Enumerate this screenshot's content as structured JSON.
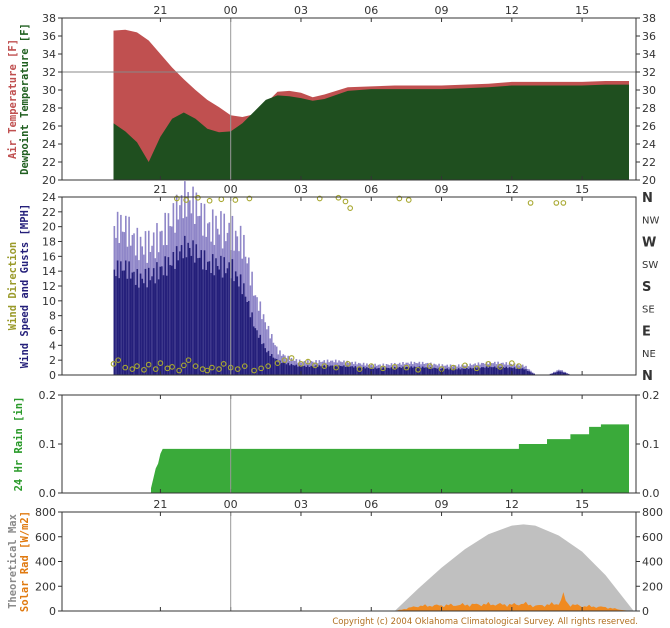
{
  "x_ticks": [
    "21",
    "00",
    "03",
    "06",
    "09",
    "12",
    "15"
  ],
  "copyright": "Copyright (c) 2004 Oklahoma Climatological Survey. All rights reserved.",
  "colors": {
    "air_temp": "#c05050",
    "dewpoint": "#1f4f1f",
    "gust": "#8f86c8",
    "wind_speed": "#241f7a",
    "wind_dir": "#a8a830",
    "rain": "#3aaa3a",
    "theoretical_max": "#c0c0c0",
    "solar": "#f08a20"
  },
  "chart_data": [
    {
      "type": "area",
      "ylabel_lines": [
        {
          "text": "Air Temperature [F]",
          "color": "#c05050"
        },
        {
          "text": "Dewpoint Temperature [F]",
          "color": "#1f5f1f"
        }
      ],
      "ylim": [
        20,
        38
      ],
      "yticks": [
        20,
        22,
        24,
        26,
        28,
        30,
        32,
        34,
        36,
        38
      ],
      "highlight_line": 32,
      "x_hours": [
        -5,
        -4.5,
        -4,
        -3.5,
        -3,
        -2.5,
        -2,
        -1.5,
        -1,
        -0.5,
        0,
        0.5,
        1,
        1.5,
        2,
        2.5,
        3,
        3.5,
        4,
        5,
        6,
        7,
        8,
        9,
        10,
        11,
        12,
        13,
        14,
        15,
        16,
        17
      ],
      "series": [
        {
          "name": "Air Temperature [F]",
          "values": [
            36.6,
            36.7,
            36.4,
            35.5,
            34.0,
            32.5,
            31.2,
            30.0,
            28.9,
            28.1,
            27.2,
            27.0,
            27.3,
            28.5,
            29.8,
            29.9,
            29.7,
            29.2,
            29.5,
            30.3,
            30.4,
            30.5,
            30.5,
            30.5,
            30.6,
            30.7,
            30.9,
            30.9,
            30.9,
            30.9,
            31.0,
            31.0
          ]
        },
        {
          "name": "Dewpoint Temperature [F]",
          "values": [
            26.3,
            25.4,
            24.2,
            22.0,
            24.8,
            26.8,
            27.5,
            26.8,
            25.7,
            25.3,
            25.4,
            26.3,
            27.6,
            28.9,
            29.4,
            29.3,
            29.1,
            28.8,
            29.0,
            29.9,
            30.1,
            30.1,
            30.1,
            30.1,
            30.2,
            30.3,
            30.5,
            30.5,
            30.5,
            30.5,
            30.6,
            30.6
          ]
        }
      ]
    },
    {
      "type": "bar",
      "ylabel_lines": [
        {
          "text": "Wind Direction",
          "color": "#9a9a2a"
        },
        {
          "text": "Wind Speed and Gusts [MPH]",
          "color": "#241f7a"
        }
      ],
      "ylim": [
        0,
        24
      ],
      "yticks": [
        0,
        2,
        4,
        6,
        8,
        10,
        12,
        14,
        16,
        18,
        20,
        22,
        24
      ],
      "direction_labels": [
        "N",
        "NW",
        "W",
        "SW",
        "S",
        "SE",
        "E",
        "NE",
        "N"
      ],
      "x_hours": [
        -5,
        -4.5,
        -4,
        -3.5,
        -3,
        -2.5,
        -2,
        -1.5,
        -1,
        -0.5,
        0,
        0.5,
        1,
        1.5,
        2,
        2.5,
        3,
        4,
        5,
        6,
        7,
        8,
        9,
        10,
        11,
        12,
        12.5,
        13,
        13.5,
        14,
        14.5,
        15,
        16,
        17
      ],
      "series": [
        {
          "name": "Gusts",
          "values": [
            18,
            19,
            18.5,
            19.5,
            20,
            20.5,
            21.5,
            21,
            20,
            22,
            21,
            18,
            10,
            6,
            3,
            2.3,
            2,
            1.8,
            1.6,
            1.5,
            1.5,
            1.5,
            1.4,
            1.4,
            1.5,
            1.5,
            1.4,
            0,
            0,
            0.7,
            0,
            0,
            0,
            0
          ]
        },
        {
          "name": "Wind Speed",
          "values": [
            13,
            14,
            13.5,
            14.5,
            15,
            15,
            16,
            15.5,
            15,
            16,
            15.5,
            12,
            6,
            3,
            1.8,
            1.5,
            1.3,
            1.2,
            1.1,
            1,
            1,
            1,
            0.9,
            0.9,
            1,
            1,
            0.9,
            0,
            0,
            0.5,
            0,
            0,
            0,
            0
          ]
        }
      ],
      "direction_points": {
        "x_hours": [
          -5,
          -4.8,
          -4.5,
          -4.2,
          -4,
          -3.7,
          -3.5,
          -3.2,
          -3,
          -2.7,
          -2.5,
          -2.2,
          -2,
          -1.8,
          -1.5,
          -1.2,
          -1,
          -0.8,
          -0.5,
          -0.3,
          0,
          0.3,
          0.6,
          1,
          1.3,
          1.6,
          2,
          2.3,
          2.6,
          3,
          3.3,
          3.6,
          4,
          4.5,
          5,
          5.5,
          6,
          6.5,
          7,
          7.5,
          8,
          8.5,
          9,
          9.5,
          10,
          10.5,
          11,
          11.5,
          12,
          12.3,
          -2.3,
          -1.9,
          -1.4,
          -0.9,
          -0.4,
          0.2,
          0.8,
          3.8,
          4.6,
          4.9,
          5.1,
          7.2,
          7.6,
          12.8,
          13.9,
          14.2
        ],
        "values": [
          1.5,
          2,
          1,
          0.8,
          1.2,
          0.7,
          1.4,
          0.8,
          1.6,
          0.9,
          1.1,
          0.6,
          1.3,
          2,
          1.2,
          0.8,
          0.6,
          1,
          0.8,
          1.5,
          1,
          0.8,
          1.2,
          0.6,
          0.9,
          1.2,
          1.6,
          2,
          2.3,
          1.5,
          1.8,
          1.3,
          1.2,
          1,
          1.5,
          0.8,
          1.2,
          0.9,
          1.1,
          1,
          0.7,
          1.2,
          0.8,
          1,
          1.3,
          0.9,
          1.5,
          1.1,
          1.6,
          1.2,
          23.8,
          23.6,
          23.9,
          23.5,
          23.7,
          23.6,
          23.8,
          23.8,
          23.9,
          23.4,
          22.5,
          23.8,
          23.6,
          23.2,
          23.2,
          23.2
        ]
      }
    },
    {
      "type": "area",
      "ylabel_lines": [
        {
          "text": "24 Hr Rain [in]",
          "color": "#2a9a2a"
        }
      ],
      "ylim": [
        0,
        0.2
      ],
      "yticks": [
        0,
        0.1,
        0.2
      ],
      "ytick_labels": [
        "0.0",
        "0.1",
        "0.2"
      ],
      "x_hours": [
        -5,
        -3.4,
        -3.4,
        -3.3,
        -3.2,
        -3.1,
        -3.0,
        -2.9,
        -2.8,
        12.3,
        12.3,
        13.5,
        13.5,
        14.5,
        14.5,
        15.3,
        15.3,
        15.8,
        15.8,
        17
      ],
      "values": [
        0,
        0,
        0.01,
        0.03,
        0.05,
        0.06,
        0.08,
        0.09,
        0.09,
        0.09,
        0.1,
        0.1,
        0.11,
        0.11,
        0.12,
        0.12,
        0.135,
        0.135,
        0.14,
        0.14
      ]
    },
    {
      "type": "area",
      "ylabel_lines": [
        {
          "text": "Theoretical Max",
          "color": "#8a8a8a"
        },
        {
          "text": "Solar Rad [W/m2]",
          "color": "#e07a10"
        }
      ],
      "ylim": [
        0,
        800
      ],
      "yticks": [
        0,
        200,
        400,
        600,
        800
      ],
      "series": [
        {
          "name": "Theoretical Max",
          "x_hours": [
            7,
            8,
            9,
            10,
            11,
            12,
            12.5,
            13,
            14,
            15,
            16,
            17.2
          ],
          "values": [
            0,
            180,
            350,
            500,
            620,
            690,
            700,
            690,
            610,
            480,
            290,
            0
          ]
        },
        {
          "name": "Solar Rad",
          "x_hours": [
            7,
            7.5,
            8,
            9,
            10,
            11,
            12,
            12.5,
            13,
            13.5,
            14,
            14.2,
            14.4,
            15,
            16,
            17
          ],
          "values": [
            0,
            20,
            40,
            45,
            50,
            55,
            50,
            60,
            40,
            50,
            60,
            120,
            55,
            40,
            30,
            0
          ]
        }
      ]
    }
  ]
}
